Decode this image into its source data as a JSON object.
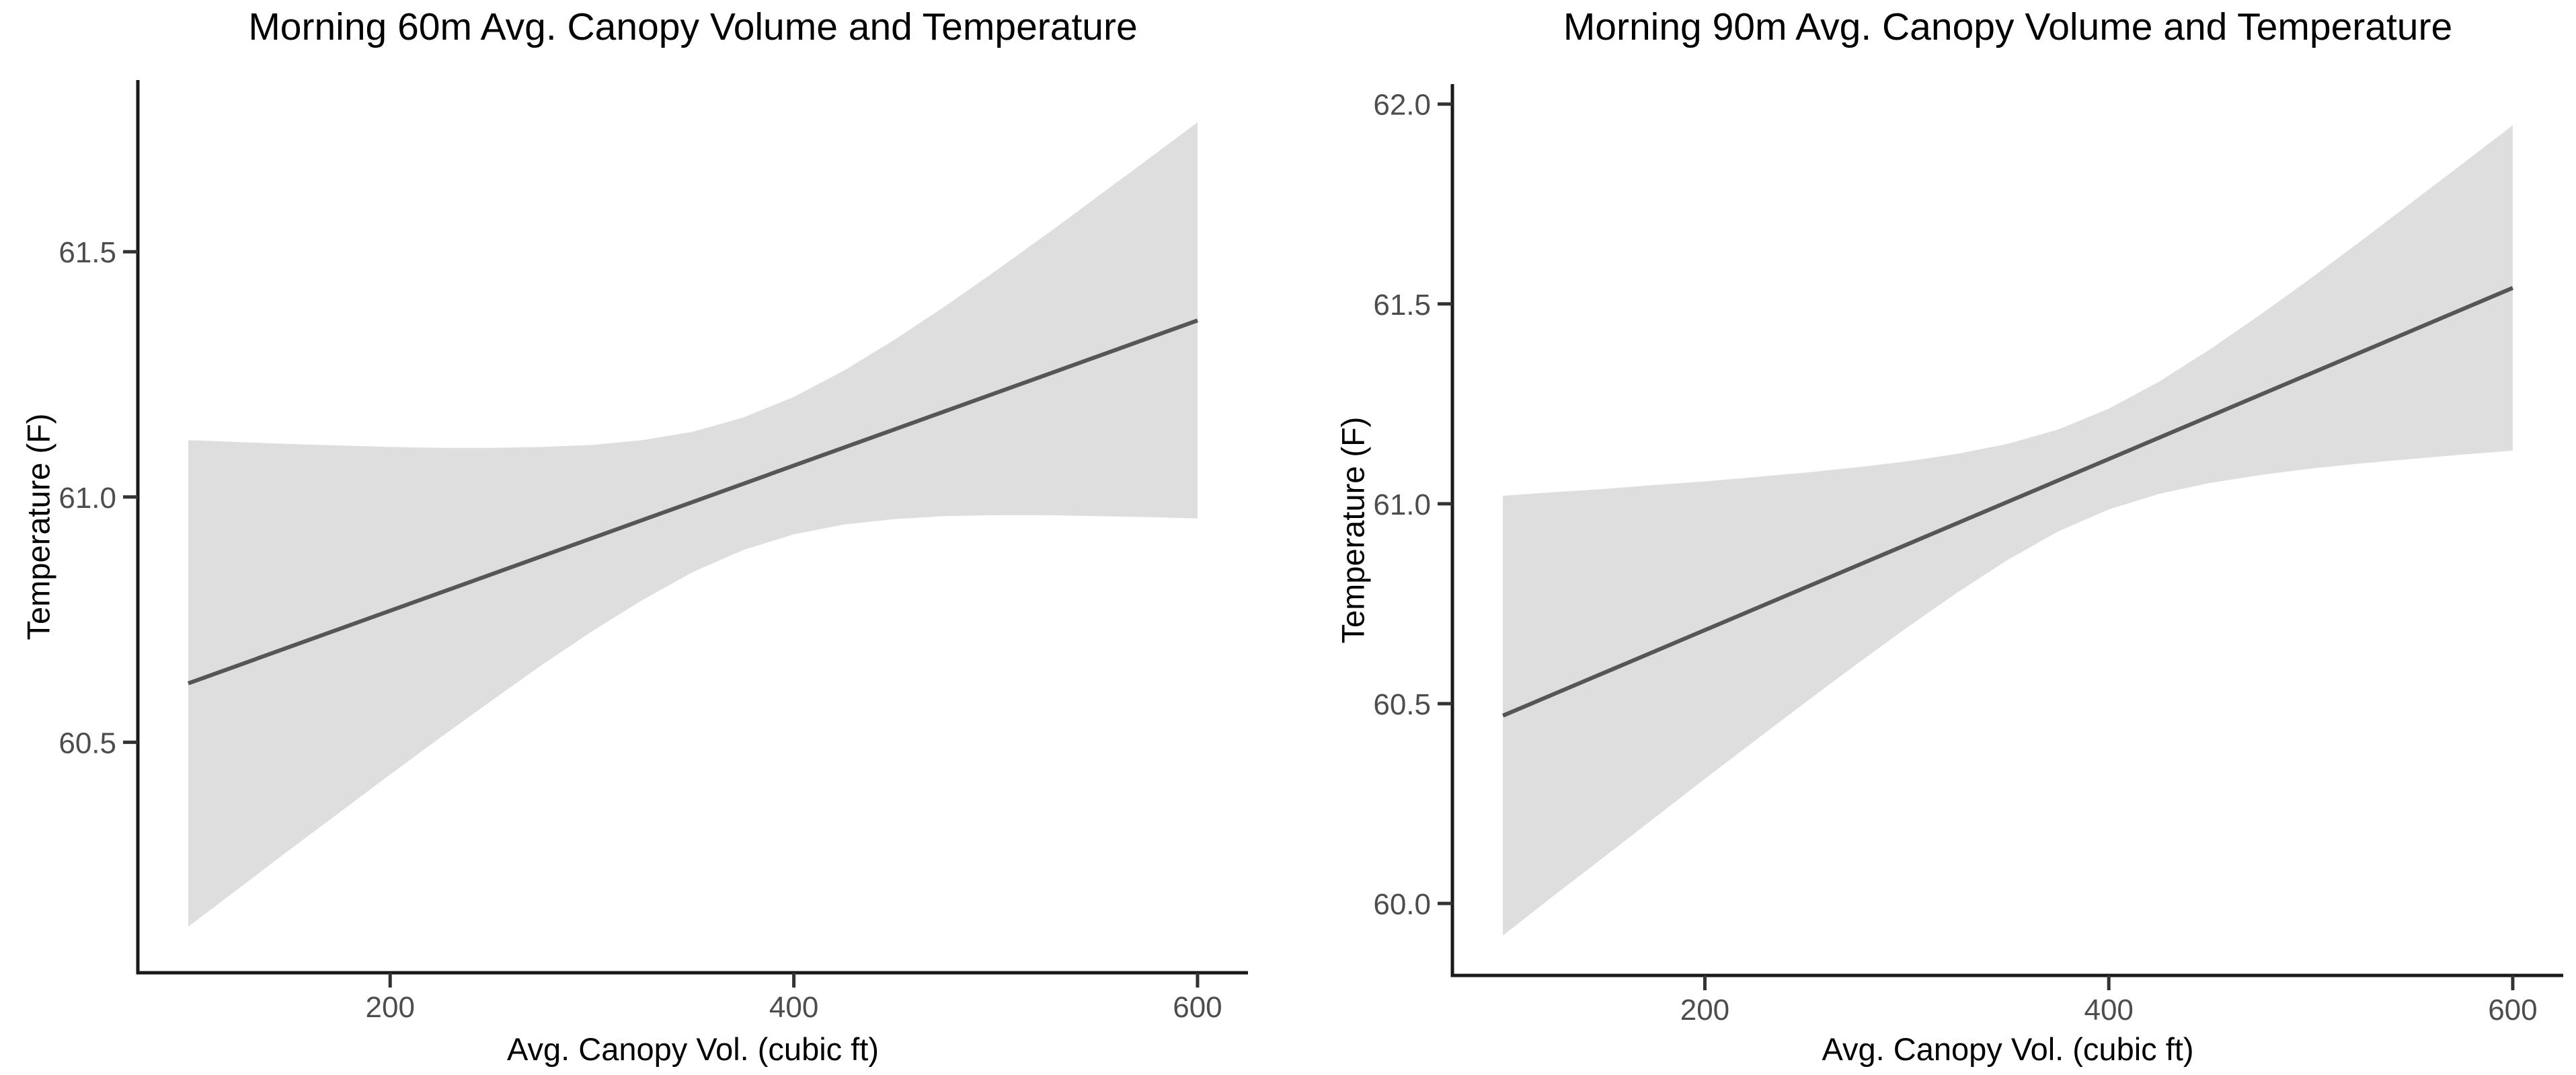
{
  "figure": {
    "background": "#ffffff",
    "panel_count": 2
  },
  "style": {
    "band_color": "#dedede",
    "line_color": "#565656",
    "axis_line_color": "#1a1a1a",
    "tick_mark_color": "#333333",
    "tick_label_color": "#4d4d4d",
    "title_color": "#000000"
  },
  "chart_data": [
    {
      "type": "line",
      "title": "Morning 60m Avg. Canopy Volume and Temperature",
      "xlabel": "Avg. Canopy Vol. (cubic ft)",
      "ylabel": "Temperature (F)",
      "xlim": [
        75,
        625
      ],
      "ylim": [
        60.03,
        61.85
      ],
      "xticks": [
        200,
        400,
        600
      ],
      "xtick_labels": [
        "200",
        "400",
        "600"
      ],
      "yticks": [
        60.5,
        61.0,
        61.5
      ],
      "ytick_labels": [
        "60.5",
        "61.0",
        "61.5"
      ],
      "grid": false,
      "legend": "none",
      "regression_line": {
        "x": [
          100,
          600
        ],
        "y": [
          60.62,
          61.36
        ]
      },
      "confidence_band": {
        "x": [
          100,
          125,
          150,
          175,
          200,
          225,
          250,
          275,
          300,
          325,
          350,
          375,
          400,
          425,
          450,
          475,
          500,
          525,
          550,
          575,
          600
        ],
        "upper": [
          61.116,
          61.112,
          61.108,
          61.105,
          61.102,
          61.1,
          61.1,
          61.102,
          61.106,
          61.116,
          61.133,
          61.162,
          61.204,
          61.258,
          61.321,
          61.389,
          61.461,
          61.535,
          61.611,
          61.687,
          61.764
        ],
        "lower": [
          60.124,
          60.202,
          60.28,
          60.357,
          60.434,
          60.51,
          60.584,
          60.657,
          60.726,
          60.79,
          60.847,
          60.892,
          60.924,
          60.944,
          60.955,
          60.961,
          60.963,
          60.963,
          60.961,
          60.959,
          60.956
        ]
      }
    },
    {
      "type": "line",
      "title": "Morning 90m Avg. Canopy Volume and Temperature",
      "xlabel": "Avg. Canopy Vol. (cubic ft)",
      "ylabel": "Temperature (F)",
      "xlim": [
        75,
        625
      ],
      "ylim": [
        59.82,
        62.05
      ],
      "xticks": [
        200,
        400,
        600
      ],
      "xtick_labels": [
        "200",
        "400",
        "600"
      ],
      "yticks": [
        60.0,
        60.5,
        61.0,
        61.5,
        62.0
      ],
      "ytick_labels": [
        "60.0",
        "60.5",
        "61.0",
        "61.5",
        "62.0"
      ],
      "grid": false,
      "legend": "none",
      "regression_line": {
        "x": [
          100,
          600
        ],
        "y": [
          60.47,
          61.54
        ]
      },
      "confidence_band": {
        "x": [
          100,
          125,
          150,
          175,
          200,
          225,
          250,
          275,
          300,
          325,
          350,
          375,
          400,
          425,
          450,
          475,
          500,
          525,
          550,
          575,
          600
        ],
        "upper": [
          61.02,
          61.029,
          61.037,
          61.047,
          61.056,
          61.067,
          61.078,
          61.091,
          61.106,
          61.125,
          61.15,
          61.186,
          61.238,
          61.306,
          61.386,
          61.473,
          61.564,
          61.658,
          61.754,
          61.85,
          61.947
        ],
        "lower": [
          59.92,
          60.019,
          60.116,
          60.214,
          60.312,
          60.408,
          60.504,
          60.598,
          60.69,
          60.778,
          60.86,
          60.931,
          60.986,
          61.025,
          61.052,
          61.072,
          61.088,
          61.101,
          61.112,
          61.123,
          61.133
        ]
      }
    }
  ]
}
